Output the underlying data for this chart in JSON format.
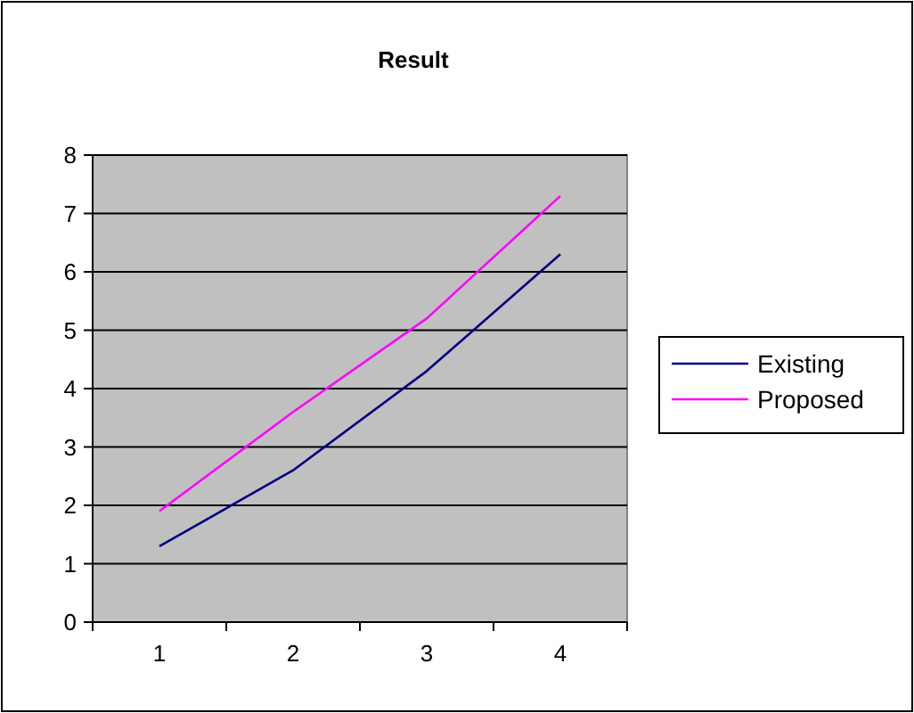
{
  "chart_data": {
    "type": "line",
    "title": "Result",
    "categories": [
      "1",
      "2",
      "3",
      "4"
    ],
    "series": [
      {
        "name": "Existing",
        "color": "#000080",
        "values": [
          1.3,
          2.6,
          4.3,
          6.3
        ]
      },
      {
        "name": "Proposed",
        "color": "#ff00ff",
        "values": [
          1.9,
          3.6,
          5.2,
          7.3
        ]
      }
    ],
    "ylim": [
      0,
      8
    ],
    "yticks": [
      0,
      1,
      2,
      3,
      4,
      5,
      6,
      7,
      8
    ],
    "grid": "y",
    "legend": "right",
    "marker": "none",
    "line_style": "solid"
  }
}
